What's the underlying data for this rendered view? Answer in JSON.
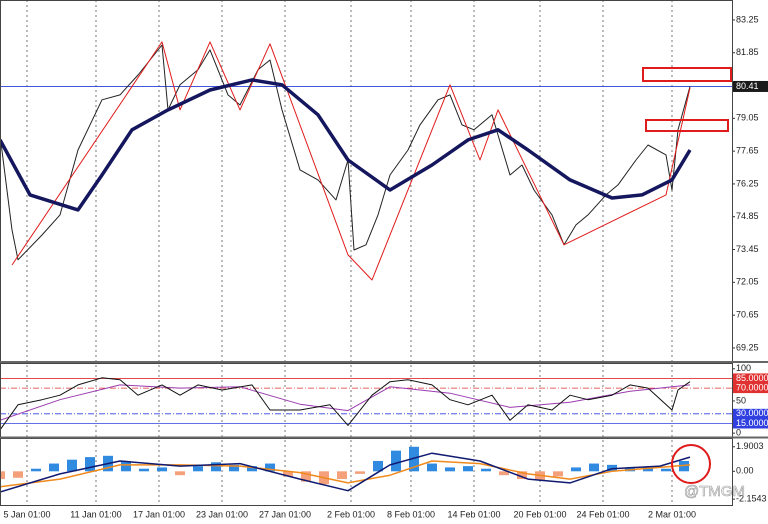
{
  "watermark": "@TMGM",
  "chart_data": [
    {
      "type": "line",
      "xlim": [
        0,
        122
      ],
      "ylim": [
        68.65,
        84.1
      ],
      "yticks": [
        83.25,
        81.85,
        79.05,
        77.65,
        76.25,
        74.85,
        73.45,
        72.05,
        70.65,
        69.25
      ],
      "last_price": 80.41,
      "last_price_color": "#2a3dd8",
      "series": [
        {
          "color": "#222222",
          "width": 1,
          "x": [
            0,
            2,
            3,
            7,
            10,
            13,
            17,
            20,
            23,
            25,
            27,
            28,
            30,
            33,
            35,
            38,
            40,
            43,
            45,
            47,
            50,
            53,
            56,
            58,
            59,
            61,
            63,
            65,
            68,
            70,
            73,
            75,
            77,
            79,
            82,
            83,
            85,
            87,
            89,
            92,
            94,
            96,
            98,
            101,
            103,
            106,
            108,
            111,
            112,
            113,
            115
          ],
          "values": [
            78.34,
            74.29,
            73.01,
            74.07,
            74.93,
            77.7,
            79.84,
            80.05,
            80.9,
            81.54,
            82.18,
            79.41,
            80.48,
            81.12,
            81.97,
            80.05,
            79.62,
            81.12,
            81.54,
            79.41,
            76.85,
            76.42,
            75.57,
            77.27,
            73.43,
            73.65,
            74.93,
            76.63,
            77.7,
            78.77,
            79.84,
            80.05,
            78.77,
            78.56,
            79.2,
            78.34,
            76.63,
            77.06,
            75.99,
            74.93,
            73.65,
            74.5,
            74.93,
            75.78,
            76.21,
            77.27,
            77.91,
            77.49,
            75.99,
            78.56,
            80.41
          ]
        },
        {
          "color": "#e01b1b",
          "width": 1,
          "x": [
            2,
            27,
            30,
            35,
            40,
            45,
            58,
            62,
            75,
            80,
            83,
            94,
            111,
            115
          ],
          "values": [
            72.79,
            82.31,
            79.41,
            82.31,
            79.41,
            82.23,
            73.22,
            72.15,
            80.48,
            77.27,
            79.41,
            73.65,
            75.78,
            80.35
          ]
        },
        {
          "color": "#14165e",
          "width": 3.5,
          "x": [
            0,
            5,
            13,
            17,
            22,
            28,
            35,
            42,
            47,
            53,
            58,
            65,
            72,
            78,
            83,
            88,
            95,
            102,
            107,
            112,
            115
          ],
          "values": [
            78.13,
            75.78,
            75.14,
            76.63,
            78.56,
            79.41,
            80.26,
            80.69,
            80.48,
            79.2,
            77.27,
            75.99,
            77.06,
            78.13,
            78.56,
            77.7,
            76.42,
            75.65,
            75.78,
            76.42,
            77.7
          ]
        }
      ]
    },
    {
      "type": "line",
      "xlim": [
        0,
        122
      ],
      "ylim": [
        -6,
        109
      ],
      "yticks": [
        100,
        50,
        0
      ],
      "levels": [
        {
          "value": 85,
          "label": "85.0000",
          "color": "#e03030",
          "dashed": false
        },
        {
          "value": 70,
          "label": "70.0000",
          "color": "#e03030",
          "dashed": true
        },
        {
          "value": 30,
          "label": "30.0000",
          "color": "#3040e0",
          "dashed": true
        },
        {
          "value": 15,
          "label": "15.0000",
          "color": "#3040e0",
          "dashed": false
        }
      ],
      "series": [
        {
          "color": "#9b3bb0",
          "width": 1,
          "x": [
            0,
            10,
            20,
            30,
            40,
            50,
            58,
            65,
            75,
            85,
            95,
            105,
            115
          ],
          "values": [
            20,
            52,
            75,
            70,
            72,
            45,
            35,
            72,
            62,
            40,
            48,
            65,
            75
          ]
        },
        {
          "color": "#111111",
          "width": 1,
          "x": [
            0,
            3,
            7,
            10,
            13,
            17,
            20,
            23,
            27,
            30,
            33,
            37,
            42,
            45,
            50,
            55,
            58,
            62,
            65,
            68,
            72,
            75,
            78,
            82,
            85,
            88,
            92,
            95,
            98,
            102,
            105,
            108,
            112,
            113,
            115
          ],
          "values": [
            5,
            44,
            52,
            59,
            75,
            86,
            83,
            59,
            75,
            59,
            75,
            67,
            75,
            36,
            36,
            44,
            12,
            59,
            80,
            83,
            75,
            52,
            44,
            59,
            20,
            44,
            36,
            59,
            52,
            59,
            75,
            70,
            36,
            67,
            80
          ]
        }
      ]
    },
    {
      "type": "line",
      "xlim": [
        0,
        122
      ],
      "ylim": [
        -2.61,
        2.58
      ],
      "yticks": [
        1.9003,
        {
          "value": 0,
          "label": "0.00"
        },
        -2.1543
      ],
      "xticks": [
        {
          "value": 4.5,
          "label": "5 Jan 01:00"
        },
        {
          "value": 16,
          "label": "11 Jan 01:00"
        },
        {
          "value": 26.5,
          "label": "17 Jan 01:00"
        },
        {
          "value": 37,
          "label": "23 Jan 01:00"
        },
        {
          "value": 47.5,
          "label": "27 Jan 01:00"
        },
        {
          "value": 58.5,
          "label": "2 Feb 01:00"
        },
        {
          "value": 68.5,
          "label": "8 Feb 01:00"
        },
        {
          "value": 79,
          "label": "14 Feb 01:00"
        },
        {
          "value": 90,
          "label": "20 Feb 01:00"
        },
        {
          "value": 100.5,
          "label": "24 Feb 01:00"
        },
        {
          "value": 112,
          "label": "2 Mar 01:00"
        }
      ],
      "series": [
        {
          "style": "bar",
          "color": "#2f8ae0",
          "negative_color": "#f4a07a",
          "x": [
            0,
            3,
            6,
            9,
            12,
            15,
            18,
            21,
            24,
            27,
            30,
            33,
            36,
            39,
            42,
            45,
            48,
            51,
            54,
            57,
            60,
            63,
            66,
            69,
            72,
            75,
            78,
            81,
            84,
            87,
            90,
            93,
            96,
            99,
            102,
            105,
            108,
            111,
            114
          ],
          "values": [
            -0.6,
            -0.5,
            0.2,
            0.6,
            0.9,
            1.1,
            1.2,
            0.8,
            0.2,
            0.3,
            -0.3,
            0.4,
            0.7,
            0.5,
            0.4,
            0.6,
            -0.4,
            -0.8,
            -1.0,
            -0.6,
            -0.2,
            0.8,
            1.6,
            1.9,
            0.6,
            0.3,
            0.4,
            0.2,
            -0.3,
            -0.6,
            -0.7,
            -0.4,
            0.3,
            0.6,
            0.5,
            0.3,
            0.3,
            0.2,
            0.8
          ]
        },
        {
          "color": "#f08a1c",
          "width": 1.5,
          "x": [
            0,
            10,
            20,
            30,
            40,
            50,
            58,
            65,
            72,
            80,
            88,
            95,
            102,
            110,
            115
          ],
          "values": [
            -1.2,
            -0.6,
            0.5,
            0.5,
            0.4,
            -0.1,
            -0.9,
            -0.3,
            0.8,
            0.6,
            -0.2,
            -0.6,
            0.0,
            0.3,
            0.5
          ]
        },
        {
          "color": "#101a70",
          "width": 1.5,
          "x": [
            0,
            10,
            20,
            30,
            40,
            50,
            58,
            65,
            72,
            80,
            88,
            95,
            102,
            110,
            115
          ],
          "values": [
            -1.6,
            -0.2,
            0.8,
            0.4,
            0.6,
            -0.6,
            -1.5,
            0.5,
            1.4,
            0.8,
            -0.6,
            -0.9,
            0.2,
            0.4,
            1.1
          ]
        }
      ]
    }
  ]
}
